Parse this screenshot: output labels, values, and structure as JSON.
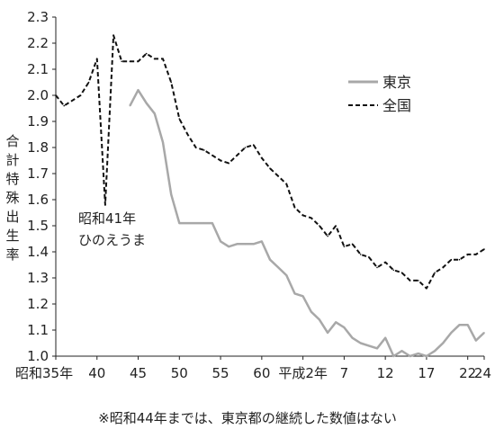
{
  "chart_data": {
    "type": "line",
    "ylabel": "合計特殊出生率",
    "ylim": [
      1.0,
      2.3
    ],
    "yticks": [
      "1.0",
      "1.1",
      "1.2",
      "1.3",
      "1.4",
      "1.5",
      "1.6",
      "1.7",
      "1.8",
      "1.9",
      "2.0",
      "2.1",
      "2.2",
      "2.3"
    ],
    "xlim": [
      1960,
      2012
    ],
    "xticks": [
      {
        "year": 1960,
        "label": "昭和35年"
      },
      {
        "year": 1965,
        "label": "40"
      },
      {
        "year": 1970,
        "label": "45"
      },
      {
        "year": 1975,
        "label": "50"
      },
      {
        "year": 1980,
        "label": "55"
      },
      {
        "year": 1985,
        "label": "60"
      },
      {
        "year": 1990,
        "label": "平成2年"
      },
      {
        "year": 1995,
        "label": "7"
      },
      {
        "year": 2000,
        "label": "12"
      },
      {
        "year": 2005,
        "label": "17"
      },
      {
        "year": 2010,
        "label": "22"
      },
      {
        "year": 2012,
        "label": "24"
      }
    ],
    "grid": false,
    "legend_position": "top-right",
    "series": [
      {
        "name": "東京",
        "color": "#a8a8a8",
        "style": "solid",
        "x": [
          1969,
          1970,
          1971,
          1972,
          1973,
          1974,
          1975,
          1976,
          1977,
          1978,
          1979,
          1980,
          1981,
          1982,
          1983,
          1984,
          1985,
          1986,
          1987,
          1988,
          1989,
          1990,
          1991,
          1992,
          1993,
          1994,
          1995,
          1996,
          1997,
          1998,
          1999,
          2000,
          2001,
          2002,
          2003,
          2004,
          2005,
          2006,
          2007,
          2008,
          2009,
          2010,
          2011,
          2012
        ],
        "y": [
          1.96,
          2.02,
          1.97,
          1.93,
          1.82,
          1.62,
          1.51,
          1.51,
          1.51,
          1.51,
          1.51,
          1.44,
          1.42,
          1.43,
          1.43,
          1.43,
          1.44,
          1.37,
          1.34,
          1.31,
          1.24,
          1.23,
          1.17,
          1.14,
          1.09,
          1.13,
          1.11,
          1.07,
          1.05,
          1.04,
          1.03,
          1.07,
          1.0,
          1.02,
          1.0,
          1.01,
          1.0,
          1.02,
          1.05,
          1.09,
          1.12,
          1.12,
          1.06,
          1.09
        ]
      },
      {
        "name": "全国",
        "color": "#111111",
        "style": "dashed",
        "x": [
          1960,
          1961,
          1962,
          1963,
          1964,
          1965,
          1966,
          1967,
          1968,
          1969,
          1970,
          1971,
          1972,
          1973,
          1974,
          1975,
          1976,
          1977,
          1978,
          1979,
          1980,
          1981,
          1982,
          1983,
          1984,
          1985,
          1986,
          1987,
          1988,
          1989,
          1990,
          1991,
          1992,
          1993,
          1994,
          1995,
          1996,
          1997,
          1998,
          1999,
          2000,
          2001,
          2002,
          2003,
          2004,
          2005,
          2006,
          2007,
          2008,
          2009,
          2010,
          2011,
          2012
        ],
        "y": [
          2.0,
          1.96,
          1.98,
          2.0,
          2.05,
          2.14,
          1.58,
          2.23,
          2.13,
          2.13,
          2.13,
          2.16,
          2.14,
          2.14,
          2.05,
          1.91,
          1.85,
          1.8,
          1.79,
          1.77,
          1.75,
          1.74,
          1.77,
          1.8,
          1.81,
          1.76,
          1.72,
          1.69,
          1.66,
          1.57,
          1.54,
          1.53,
          1.5,
          1.46,
          1.5,
          1.42,
          1.43,
          1.39,
          1.38,
          1.34,
          1.36,
          1.33,
          1.32,
          1.29,
          1.29,
          1.26,
          1.32,
          1.34,
          1.37,
          1.37,
          1.39,
          1.39,
          1.41
        ]
      }
    ]
  },
  "legend": [
    {
      "label": "東京"
    },
    {
      "label": "全国"
    }
  ],
  "annotation": {
    "line1": "昭和41年",
    "line2": "ひのえうま"
  },
  "footnote": "※昭和44年までは、東京都の継続した数値はない"
}
